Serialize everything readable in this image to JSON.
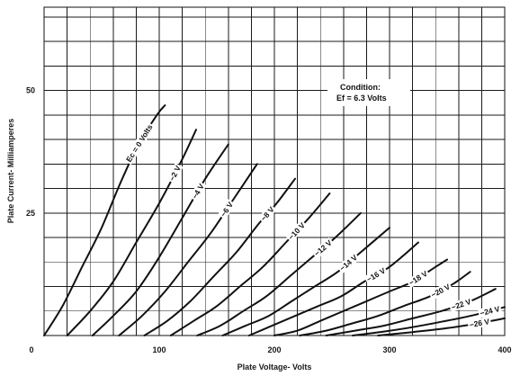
{
  "chart_data": {
    "type": "line",
    "xlabel": "Plate Voltage- Volts",
    "ylabel": "Plate Current- Milliamperes",
    "xlim": [
      0,
      400
    ],
    "ylim": [
      0,
      67
    ],
    "x_ticks": [
      {
        "value": 0,
        "label": "0"
      },
      {
        "value": 100,
        "label": "100"
      },
      {
        "value": 200,
        "label": "200"
      },
      {
        "value": 300,
        "label": "300"
      },
      {
        "value": 400,
        "label": "400"
      }
    ],
    "y_ticks": [
      {
        "value": 25,
        "label": "25"
      },
      {
        "value": 50,
        "label": "50"
      }
    ],
    "grid_x_step": 20,
    "grid_y_step": 5,
    "grid": true,
    "annotation": {
      "lines": [
        "Condition:",
        "Ef = 6.3 Volts"
      ]
    },
    "series": [
      {
        "name": "Ec = 0 Volts",
        "x": [
          0,
          16,
          33,
          50,
          66,
          82,
          98,
          105
        ],
        "y": [
          0,
          6,
          14,
          22,
          31,
          39,
          45,
          47
        ]
      },
      {
        "name": "−2 V",
        "x": [
          20,
          40,
          60,
          80,
          100,
          120,
          132
        ],
        "y": [
          0,
          5,
          11,
          19,
          27,
          36,
          42
        ]
      },
      {
        "name": "−4 V",
        "x": [
          42,
          60,
          80,
          100,
          120,
          140,
          160
        ],
        "y": [
          0,
          4,
          9,
          16,
          24,
          32,
          39
        ]
      },
      {
        "name": "−6 V",
        "x": [
          65,
          85,
          105,
          125,
          145,
          165,
          185
        ],
        "y": [
          0,
          4,
          9,
          15,
          21,
          28,
          35
        ]
      },
      {
        "name": "−8 V",
        "x": [
          87,
          107,
          127,
          147,
          167,
          187,
          202,
          218
        ],
        "y": [
          0,
          3,
          7,
          12,
          17,
          23,
          27,
          32
        ]
      },
      {
        "name": "−10 V",
        "x": [
          110,
          130,
          150,
          170,
          190,
          210,
          230,
          248
        ],
        "y": [
          0,
          3,
          6,
          10,
          14,
          19,
          24,
          29
        ]
      },
      {
        "name": "−12 V",
        "x": [
          133,
          153,
          173,
          193,
          213,
          233,
          253,
          275
        ],
        "y": [
          0,
          2,
          5,
          8,
          12,
          16,
          20,
          25
        ]
      },
      {
        "name": "−14 V",
        "x": [
          155,
          175,
          195,
          215,
          235,
          255,
          275,
          300
        ],
        "y": [
          0,
          2,
          4,
          7,
          10,
          13,
          17,
          22
        ]
      },
      {
        "name": "−16 V",
        "x": [
          178,
          198,
          218,
          238,
          258,
          278,
          300,
          325
        ],
        "y": [
          0,
          2,
          4,
          6,
          8,
          11,
          14,
          19
        ]
      },
      {
        "name": "−18 V",
        "x": [
          200,
          220,
          240,
          260,
          280,
          300,
          320,
          340,
          350
        ],
        "y": [
          0,
          1,
          3,
          5,
          7,
          9,
          11,
          14,
          15.5
        ]
      },
      {
        "name": "−20 V",
        "x": [
          222,
          245,
          268,
          290,
          312,
          335,
          355,
          370
        ],
        "y": [
          0,
          1,
          2.5,
          4,
          6,
          8,
          10.5,
          13
        ]
      },
      {
        "name": "−22 V",
        "x": [
          245,
          270,
          295,
          320,
          345,
          370,
          392
        ],
        "y": [
          0,
          1,
          2,
          3.5,
          5,
          7,
          9.5
        ]
      },
      {
        "name": "−24 V",
        "x": [
          268,
          295,
          320,
          345,
          370,
          395,
          400
        ],
        "y": [
          0,
          0.8,
          1.7,
          2.8,
          4,
          5.5,
          5.8
        ]
      },
      {
        "name": "−26 V",
        "x": [
          290,
          320,
          350,
          375,
          400
        ],
        "y": [
          0,
          0.7,
          1.5,
          2.4,
          3.5
        ]
      }
    ]
  }
}
